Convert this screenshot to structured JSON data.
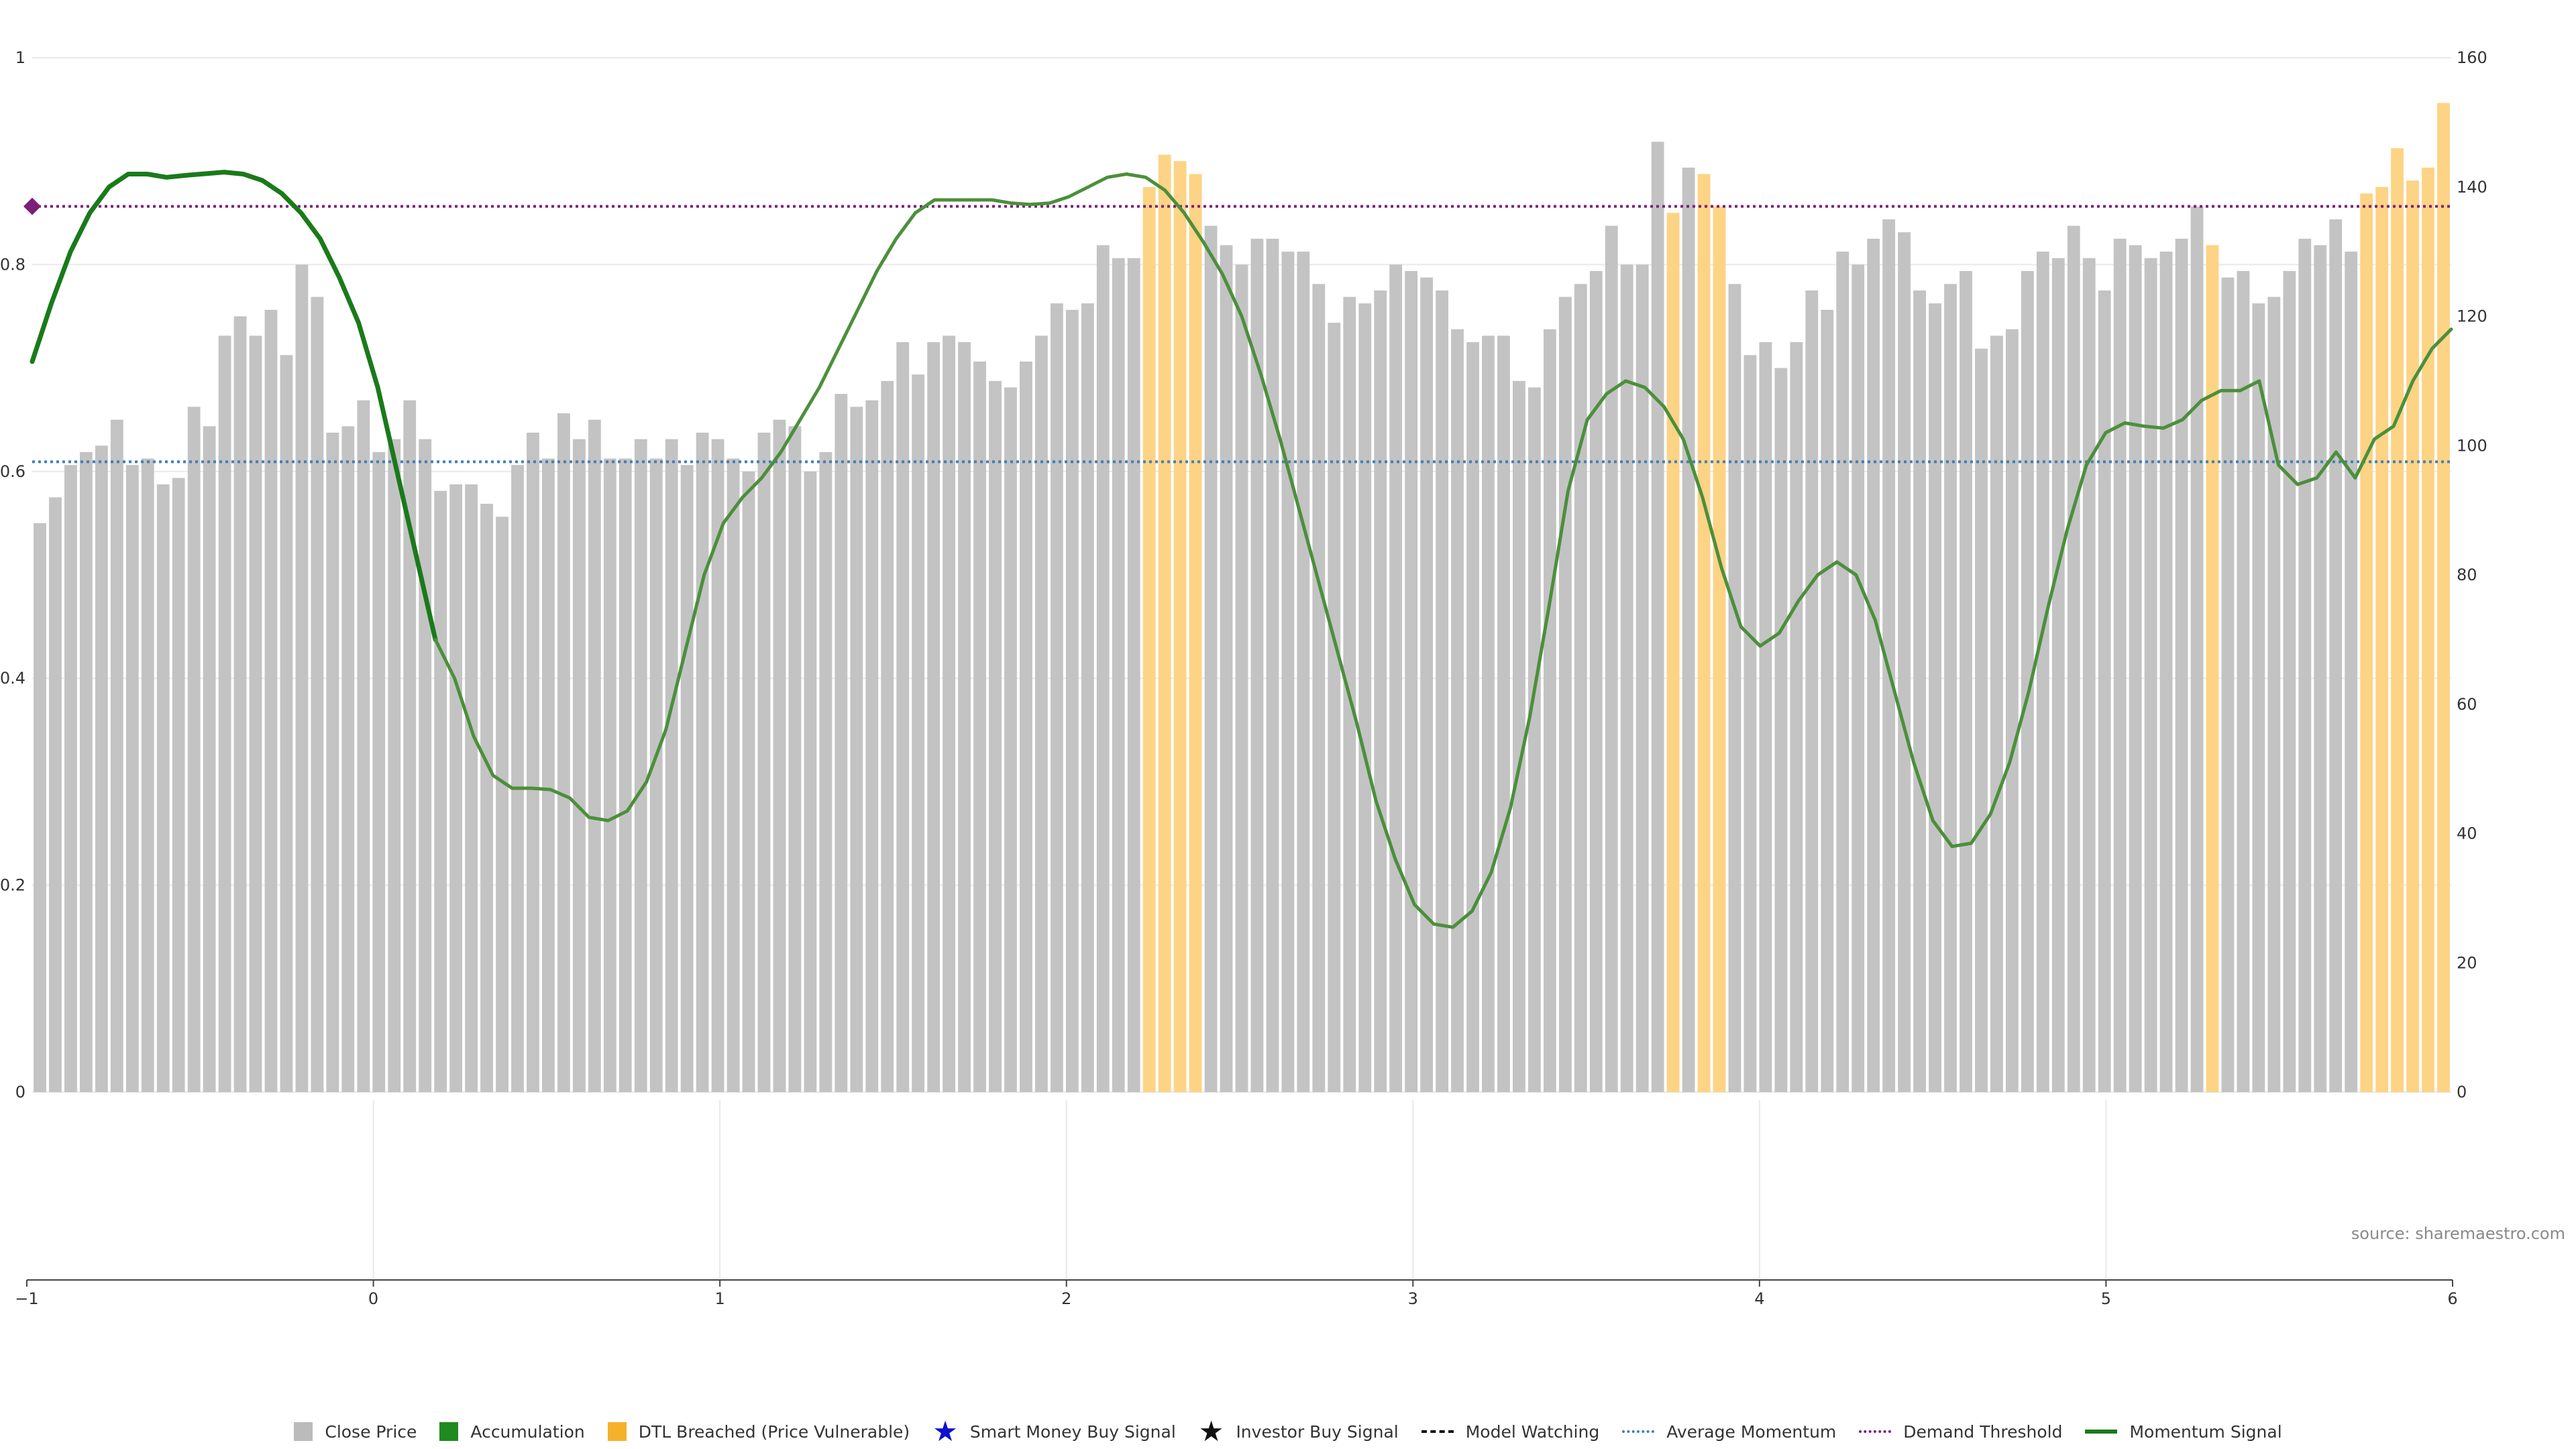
{
  "source": "source: sharemaestro.com",
  "colors": {
    "close_price": "#c3c3c3",
    "dtl_breached": "#fdd385",
    "momentum": "#1a7a1a",
    "momentum_thin": "#4c8f3b",
    "average_momentum": "#3e7fb6",
    "demand_threshold": "#7b1f7b",
    "grid": "#e9e9e9"
  },
  "legend": [
    {
      "key": "close_price",
      "label": "Close Price",
      "icon": "square",
      "color": "#bbbbbb"
    },
    {
      "key": "accumulation",
      "label": "Accumulation",
      "icon": "square",
      "color": "#1f8a1f"
    },
    {
      "key": "dtl_breached",
      "label": "DTL Breached (Price Vulnerable)",
      "icon": "square",
      "color": "#f6b12b"
    },
    {
      "key": "smart_money",
      "label": "Smart Money Buy Signal",
      "icon": "star",
      "color": "#1010d0"
    },
    {
      "key": "investor_buy",
      "label": "Investor Buy Signal",
      "icon": "star",
      "color": "#111111"
    },
    {
      "key": "model_watching",
      "label": "Model Watching",
      "icon": "dashed-line",
      "color": "#111111"
    },
    {
      "key": "average_momentum",
      "label": "Average Momentum",
      "icon": "dotted-line",
      "color": "#3e7fb6"
    },
    {
      "key": "demand_threshold",
      "label": "Demand Threshold",
      "icon": "dotted-line",
      "color": "#7b1f7b"
    },
    {
      "key": "momentum_signal",
      "label": "Momentum Signal",
      "icon": "solid-line",
      "color": "#1a7a1a"
    }
  ],
  "chart_data": {
    "type": "bar",
    "left_axis": {
      "ylim": [
        0,
        1
      ],
      "ticks": [
        "0",
        "0.2",
        "0.4",
        "0.6",
        "0.8",
        "1"
      ]
    },
    "right_axis": {
      "ylim": [
        0,
        160
      ],
      "ticks": [
        "0",
        "20",
        "40",
        "60",
        "80",
        "100",
        "120",
        "140",
        "160"
      ]
    },
    "bottom_axis": {
      "xlim": [
        -1,
        6
      ],
      "ticks": [
        "−1",
        "0",
        "1",
        "2",
        "3",
        "4",
        "5",
        "6"
      ]
    },
    "close_price": [
      88,
      92,
      97,
      99,
      100,
      104,
      97,
      98,
      94,
      95,
      106,
      103,
      117,
      120,
      117,
      121,
      114,
      128,
      123,
      102,
      103,
      107,
      99,
      101,
      107,
      101,
      93,
      94,
      94,
      91,
      89,
      97,
      102,
      98,
      105,
      101,
      104,
      98,
      98,
      101,
      98,
      101,
      97,
      102,
      101,
      98,
      96,
      102,
      104,
      103,
      96,
      99,
      108,
      106,
      107,
      110,
      116,
      111,
      116,
      117,
      116,
      113,
      110,
      109,
      113,
      117,
      122,
      121,
      122,
      131,
      129,
      129,
      140,
      145,
      144,
      142,
      134,
      131,
      128,
      132,
      132,
      130,
      130,
      125,
      119,
      123,
      122,
      124,
      128,
      127,
      126,
      124,
      118,
      116,
      117,
      117,
      110,
      109,
      118,
      123,
      125,
      127,
      134,
      128,
      128,
      147,
      136,
      143,
      142,
      137,
      125,
      114,
      116,
      112,
      116,
      124,
      121,
      130,
      128,
      132,
      135,
      133,
      124,
      122,
      125,
      127,
      115,
      117,
      118,
      127,
      130,
      129,
      134,
      129,
      124,
      132,
      131,
      129,
      130,
      132,
      137,
      131,
      126,
      127,
      122,
      123,
      127,
      132,
      131,
      135,
      130,
      139,
      140,
      146,
      141,
      143,
      153
    ],
    "dtl_breached_indices": [
      72,
      73,
      74,
      75,
      106,
      108,
      109,
      141,
      151,
      152,
      153,
      154,
      155,
      156
    ],
    "momentum_signal": [
      [
        -1.0,
        113
      ],
      [
        -0.95,
        122
      ],
      [
        -0.9,
        130
      ],
      [
        -0.85,
        136
      ],
      [
        -0.8,
        140
      ],
      [
        -0.75,
        142
      ],
      [
        -0.7,
        142
      ],
      [
        -0.65,
        141.5
      ],
      [
        -0.6,
        141.8
      ],
      [
        -0.5,
        142.3
      ],
      [
        -0.45,
        142
      ],
      [
        -0.4,
        141
      ],
      [
        -0.35,
        139
      ],
      [
        -0.3,
        136
      ],
      [
        -0.25,
        132
      ],
      [
        -0.2,
        126
      ],
      [
        -0.15,
        119
      ],
      [
        -0.1,
        109
      ],
      [
        -0.05,
        96
      ],
      [
        0.0,
        83
      ],
      [
        0.05,
        70
      ],
      [
        0.1,
        64
      ],
      [
        0.15,
        55
      ],
      [
        0.2,
        49
      ],
      [
        0.25,
        47
      ],
      [
        0.3,
        47
      ],
      [
        0.35,
        46.8
      ],
      [
        0.4,
        45.5
      ],
      [
        0.45,
        42.5
      ],
      [
        0.5,
        42
      ],
      [
        0.55,
        43.5
      ],
      [
        0.6,
        48
      ],
      [
        0.65,
        56
      ],
      [
        0.7,
        68
      ],
      [
        0.75,
        80
      ],
      [
        0.8,
        88
      ],
      [
        0.85,
        92
      ],
      [
        0.9,
        95
      ],
      [
        0.95,
        99
      ],
      [
        1.0,
        104
      ],
      [
        1.05,
        109
      ],
      [
        1.1,
        115
      ],
      [
        1.15,
        121
      ],
      [
        1.2,
        127
      ],
      [
        1.25,
        132
      ],
      [
        1.3,
        136
      ],
      [
        1.35,
        138
      ],
      [
        1.4,
        138
      ],
      [
        1.5,
        138
      ],
      [
        1.55,
        137.5
      ],
      [
        1.6,
        137.3
      ],
      [
        1.65,
        137.5
      ],
      [
        1.7,
        138.5
      ],
      [
        1.75,
        140
      ],
      [
        1.8,
        141.5
      ],
      [
        1.85,
        142
      ],
      [
        1.9,
        141.5
      ],
      [
        1.95,
        139.5
      ],
      [
        2.0,
        136
      ],
      [
        2.05,
        131.5
      ],
      [
        2.1,
        126.5
      ],
      [
        2.15,
        120
      ],
      [
        2.2,
        111
      ],
      [
        2.25,
        101
      ],
      [
        2.3,
        90
      ],
      [
        2.35,
        79
      ],
      [
        2.4,
        68
      ],
      [
        2.45,
        57
      ],
      [
        2.5,
        45
      ],
      [
        2.55,
        36
      ],
      [
        2.6,
        29
      ],
      [
        2.65,
        26
      ],
      [
        2.7,
        25.5
      ],
      [
        2.75,
        28
      ],
      [
        2.8,
        34
      ],
      [
        2.85,
        44
      ],
      [
        2.9,
        58
      ],
      [
        2.95,
        75
      ],
      [
        3.0,
        93
      ],
      [
        3.05,
        104
      ],
      [
        3.1,
        108
      ],
      [
        3.15,
        110
      ],
      [
        3.2,
        109
      ],
      [
        3.25,
        106
      ],
      [
        3.3,
        101
      ],
      [
        3.35,
        92
      ],
      [
        3.4,
        81
      ],
      [
        3.45,
        72
      ],
      [
        3.5,
        69
      ],
      [
        3.55,
        71
      ],
      [
        3.6,
        76
      ],
      [
        3.65,
        80
      ],
      [
        3.7,
        82
      ],
      [
        3.75,
        80
      ],
      [
        3.8,
        73
      ],
      [
        3.85,
        62
      ],
      [
        3.9,
        51
      ],
      [
        3.95,
        42
      ],
      [
        4.0,
        38
      ],
      [
        4.05,
        38.5
      ],
      [
        4.1,
        43
      ],
      [
        4.15,
        51
      ],
      [
        4.2,
        62
      ],
      [
        4.25,
        75
      ],
      [
        4.3,
        87
      ],
      [
        4.35,
        97
      ],
      [
        4.4,
        102
      ],
      [
        4.45,
        103.5
      ],
      [
        4.5,
        103
      ],
      [
        4.55,
        102.7
      ],
      [
        4.6,
        104
      ],
      [
        4.65,
        107
      ],
      [
        4.7,
        108.5
      ],
      [
        4.75,
        108.5
      ],
      [
        4.8,
        110
      ],
      [
        4.85,
        97
      ],
      [
        4.9,
        94
      ],
      [
        4.95,
        95
      ],
      [
        5.0,
        99
      ],
      [
        5.05,
        95
      ],
      [
        5.1,
        101
      ],
      [
        5.15,
        103
      ],
      [
        5.2,
        110
      ],
      [
        5.25,
        115
      ],
      [
        5.3,
        118
      ]
    ],
    "momentum_thin_from_x": 0.08,
    "average_momentum": 97.5,
    "demand_threshold": 137,
    "demand_marker_x": -1.0
  }
}
